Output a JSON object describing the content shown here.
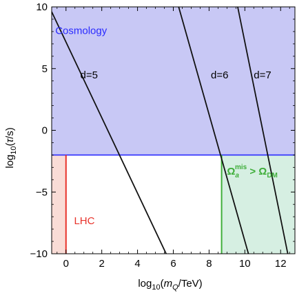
{
  "chart_data": {
    "type": "line",
    "title": "",
    "xlabel": "log10(mQ/TeV)",
    "ylabel": "log10(τ/s)",
    "xlim": [
      -0.8,
      12.8
    ],
    "ylim": [
      -10,
      10
    ],
    "x_ticks": [
      0,
      2,
      4,
      6,
      8,
      10,
      12
    ],
    "x_tick_labels": [
      "0",
      "2",
      "4",
      "6",
      "8",
      "10",
      "12"
    ],
    "y_ticks": [
      -10,
      -5,
      0,
      5,
      10
    ],
    "y_tick_labels": [
      "−10",
      "−5",
      "0",
      "5",
      "10"
    ],
    "grid": false,
    "colors": {
      "cosmology_fill": "#c8c8f5",
      "cosmology_line": "#2a2aff",
      "lhc_fill": "#f9dcd6",
      "lhc_line": "#e8322a",
      "dm_fill": "#d6efe2",
      "dm_line": "#3fae3a",
      "series": "#111111"
    },
    "regions": [
      {
        "label": "Cosmology",
        "x_range": [
          -0.8,
          12.8
        ],
        "y_range": [
          -2,
          10
        ]
      },
      {
        "label": "LHC",
        "x_range": [
          -0.8,
          0
        ],
        "y_range": [
          -10,
          -2
        ]
      },
      {
        "label": "Ω_a^mis > Ω_DM",
        "x_range": [
          8.7,
          12.8
        ],
        "y_range": [
          -10,
          -2
        ]
      }
    ],
    "region_labels": {
      "cosmology": "Cosmology",
      "lhc": "LHC",
      "dm_omega": "Ω",
      "dm_sub_a": "a",
      "dm_sup_mis": "mis",
      "dm_gt": " > Ω",
      "dm_sub_dm": "DM"
    },
    "horizontal_line": {
      "y": -2
    },
    "vertical_lines": [
      {
        "x": 0,
        "y_range": [
          -10,
          -2
        ]
      },
      {
        "x": 8.7,
        "y_range": [
          -10,
          -2
        ]
      }
    ],
    "series": [
      {
        "name": "d=5",
        "x": [
          -0.8,
          5.6
        ],
        "y": [
          9.6,
          -10
        ]
      },
      {
        "name": "d=6",
        "x": [
          6.3,
          10.2
        ],
        "y": [
          10,
          -10
        ]
      },
      {
        "name": "d=7",
        "x": [
          9.6,
          12.4
        ],
        "y": [
          10,
          -10
        ]
      }
    ],
    "series_labels": [
      {
        "text": "d=5",
        "x": 0.8,
        "y": 4.2
      },
      {
        "text": "d=6",
        "x": 8.1,
        "y": 4.2
      },
      {
        "text": "d=7",
        "x": 10.5,
        "y": 4.2
      }
    ]
  }
}
